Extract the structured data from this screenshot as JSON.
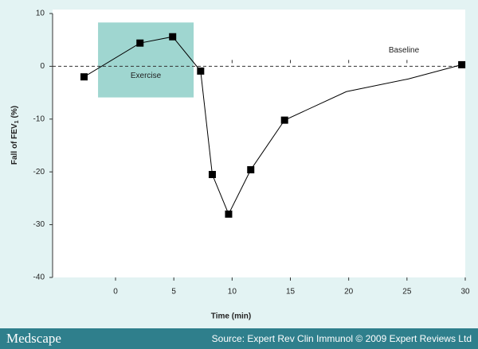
{
  "chart_data": {
    "type": "line",
    "x_label": "Time (min)",
    "y_label": {
      "text": "Fall of FEV",
      "subscript": "1",
      "suffix": "(%)"
    },
    "x": [
      -2.7,
      2.1,
      4.9,
      7.3,
      8.3,
      9.7,
      11.6,
      14.5,
      19.8,
      25.1,
      29.7
    ],
    "series": [
      {
        "color": "#000000",
        "values": [
          -2.0,
          4.4,
          5.6,
          -0.9,
          -20.5,
          -28.0,
          -19.6,
          -10.2,
          -4.8,
          -2.4,
          0.3
        ],
        "markers": [
          true,
          true,
          true,
          true,
          true,
          true,
          true,
          true,
          false,
          false,
          true
        ]
      }
    ],
    "xlim": [
      -5.4,
      30
    ],
    "ylim": [
      -40,
      10
    ],
    "xticks": [
      0,
      5,
      10,
      15,
      20,
      25,
      30
    ],
    "yticks": [
      -40,
      -30,
      -20,
      -10,
      0,
      10
    ],
    "region": {
      "label": "Exercise",
      "x": [
        -1.5,
        6.7
      ],
      "y": [
        -5.9,
        8.3
      ],
      "color": "#9fd6d0"
    },
    "baseline": {
      "label": "Baseline",
      "value": 0,
      "ticks": [
        10,
        15,
        20,
        25
      ]
    },
    "footer": {
      "brand": "Medscape",
      "source": "Source: Expert Rev Clin Immunol © 2009 Expert Reviews Ltd"
    }
  }
}
